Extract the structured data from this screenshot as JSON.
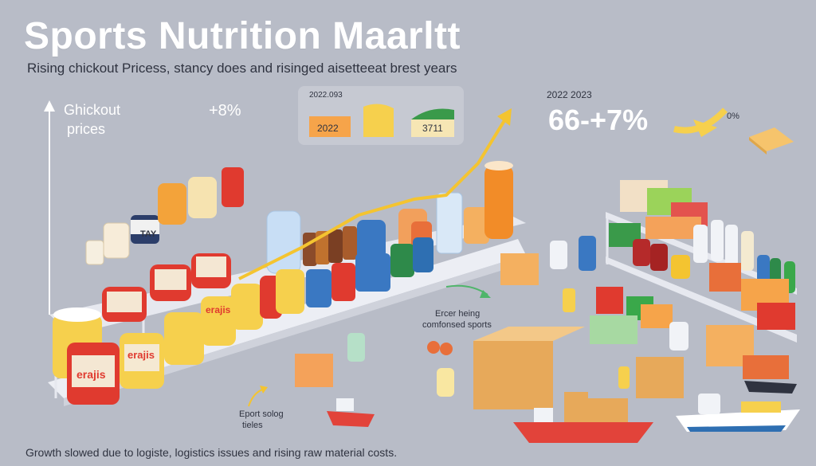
{
  "title": "Sports Nutrition Maarltt",
  "subtitle": "Rising chickout Pricess, stancy does and risinged aisetteeat brest years",
  "axis_label_line1": "Ghickout",
  "axis_label_line2": "prices",
  "increase_label": "+8%",
  "inset_panel": {
    "header": "2022.093",
    "tile1": "2022",
    "tile3": "3711"
  },
  "right_stat": {
    "years": "2022 2023",
    "value": "66-+7%",
    "small_pct": "0%"
  },
  "middle_note": {
    "line1": "Ercer heing",
    "line2": "comfonsed sports"
  },
  "export_note": {
    "line1": "Eport solog",
    "line2": "tieles"
  },
  "jar_labels": [
    "TAY",
    "erajis",
    "erajis",
    "erajis"
  ],
  "footer": "Growth slowed due to logiste, logistics issues and rising raw material costs.",
  "colors": {
    "background": "#b8bcc7",
    "trend_arrow": "#f4c430",
    "shelf": "#e6e8ef",
    "jar_red": "#e03a2f",
    "jar_yellow": "#f6d04d",
    "ship_red": "#e2433a",
    "box": "#e7a95a"
  }
}
